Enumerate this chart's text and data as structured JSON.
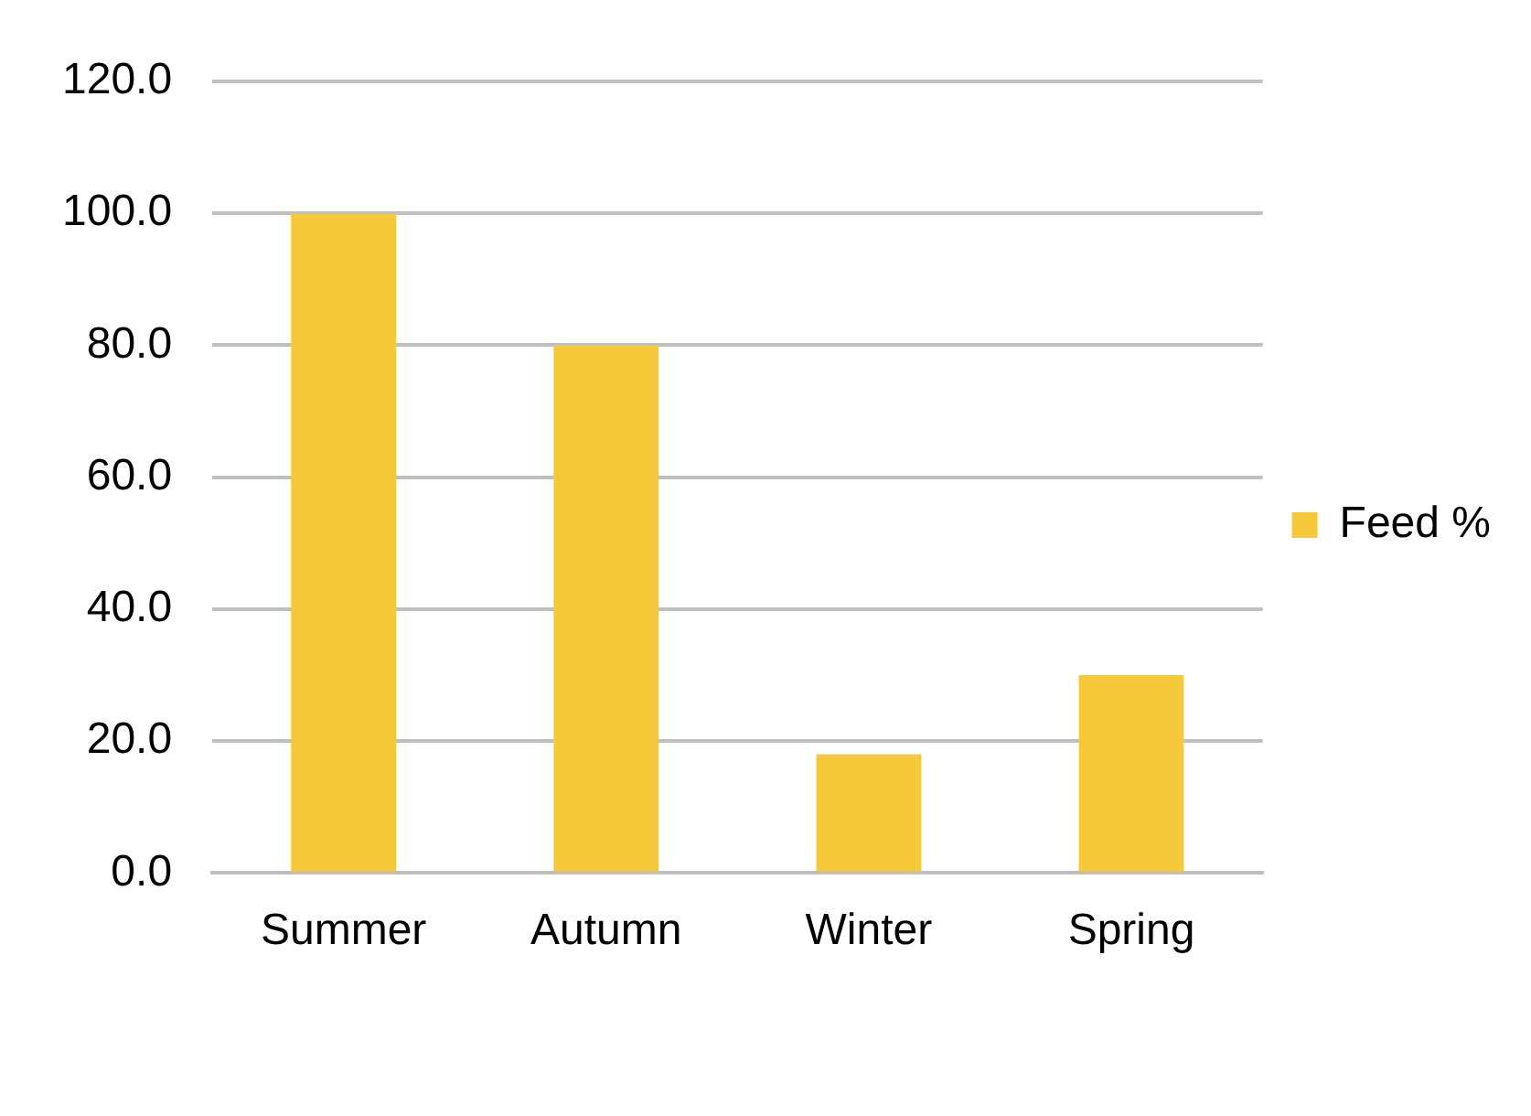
{
  "chart_data": {
    "type": "bar",
    "categories": [
      "Summer",
      "Autumn",
      "Winter",
      "Spring"
    ],
    "series": [
      {
        "name": "Feed %",
        "color": "#f5c93a",
        "values": [
          100,
          80,
          18,
          30
        ]
      }
    ],
    "ylim": [
      0,
      120
    ],
    "yticks": [
      {
        "value": 0,
        "label": "0.0"
      },
      {
        "value": 20,
        "label": "20.0"
      },
      {
        "value": 40,
        "label": "40.0"
      },
      {
        "value": 60,
        "label": "60.0"
      },
      {
        "value": 80,
        "label": "80.0"
      },
      {
        "value": 100,
        "label": "100.0"
      },
      {
        "value": 120,
        "label": "120.0"
      }
    ],
    "grid": "y",
    "legend": "right"
  }
}
